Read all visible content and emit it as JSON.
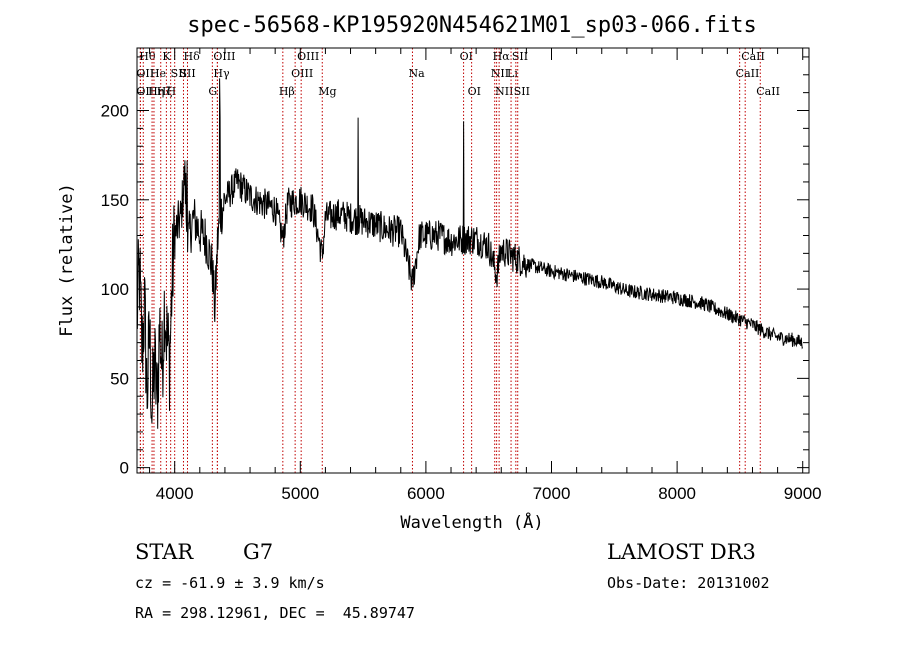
{
  "chart_data": {
    "type": "line",
    "title": "spec-56568-KP195920N454621M01_sp03-066.fits",
    "xlabel": "Wavelength (Å)",
    "ylabel": "Flux (relative)",
    "xlim": [
      3700,
      9050
    ],
    "ylim": [
      -3,
      235
    ],
    "xticks": [
      4000,
      5000,
      6000,
      7000,
      8000,
      9000
    ],
    "yticks": [
      0,
      50,
      100,
      150,
      200
    ],
    "spectrum_anchors": [
      [
        3700,
        85
      ],
      [
        3720,
        110
      ],
      [
        3740,
        65
      ],
      [
        3760,
        90
      ],
      [
        3780,
        40
      ],
      [
        3800,
        75
      ],
      [
        3820,
        30
      ],
      [
        3840,
        60
      ],
      [
        3860,
        35
      ],
      [
        3880,
        80
      ],
      [
        3900,
        55
      ],
      [
        3920,
        95
      ],
      [
        3940,
        70
      ],
      [
        3960,
        60
      ],
      [
        3980,
        105
      ],
      [
        4000,
        130
      ],
      [
        4050,
        140
      ],
      [
        4080,
        165
      ],
      [
        4100,
        125
      ],
      [
        4150,
        140
      ],
      [
        4200,
        132
      ],
      [
        4250,
        128
      ],
      [
        4300,
        112
      ],
      [
        4320,
        88
      ],
      [
        4340,
        125
      ],
      [
        4360,
        140
      ],
      [
        4400,
        150
      ],
      [
        4500,
        160
      ],
      [
        4600,
        152
      ],
      [
        4700,
        148
      ],
      [
        4800,
        145
      ],
      [
        4862,
        128
      ],
      [
        4900,
        148
      ],
      [
        5000,
        150
      ],
      [
        5100,
        145
      ],
      [
        5175,
        118
      ],
      [
        5200,
        140
      ],
      [
        5300,
        142
      ],
      [
        5400,
        140
      ],
      [
        5500,
        138
      ],
      [
        5600,
        136
      ],
      [
        5700,
        133
      ],
      [
        5800,
        132
      ],
      [
        5893,
        103
      ],
      [
        5950,
        130
      ],
      [
        6000,
        130
      ],
      [
        6100,
        130
      ],
      [
        6200,
        127
      ],
      [
        6300,
        128
      ],
      [
        6400,
        128
      ],
      [
        6500,
        124
      ],
      [
        6563,
        108
      ],
      [
        6600,
        122
      ],
      [
        6700,
        118
      ],
      [
        6800,
        114
      ],
      [
        6900,
        112
      ],
      [
        7000,
        110
      ],
      [
        7200,
        107
      ],
      [
        7400,
        104
      ],
      [
        7600,
        99
      ],
      [
        7800,
        97
      ],
      [
        8000,
        95
      ],
      [
        8200,
        92
      ],
      [
        8400,
        86
      ],
      [
        8500,
        83
      ],
      [
        8600,
        80
      ],
      [
        8700,
        76
      ],
      [
        8800,
        73
      ],
      [
        8900,
        72
      ],
      [
        9000,
        70
      ]
    ],
    "spikes": [
      {
        "x": 4358,
        "y": 218
      },
      {
        "x": 4360,
        "y": 196
      },
      {
        "x": 5460,
        "y": 196
      },
      {
        "x": 6300,
        "y": 194
      },
      {
        "x": 4100,
        "y": 172
      },
      {
        "x": 4090,
        "y": 165
      }
    ],
    "noise": [
      {
        "from": 3700,
        "to": 4000,
        "amp": 30
      },
      {
        "from": 4000,
        "to": 4400,
        "amp": 14
      },
      {
        "from": 4400,
        "to": 6800,
        "amp": 9
      },
      {
        "from": 6800,
        "to": 9050,
        "amp": 4
      }
    ],
    "lines": [
      {
        "x": 3750,
        "label": "Hθ",
        "row": 1
      },
      {
        "x": 3727,
        "label": "OII",
        "row": 2
      },
      {
        "x": 3727,
        "label": "OII",
        "row": 3
      },
      {
        "x": 3820,
        "label": "Hη",
        "row": 3
      },
      {
        "x": 3835,
        "label": "He",
        "row": 2
      },
      {
        "x": 3889,
        "label": "Hζ",
        "row": 3
      },
      {
        "x": 3934,
        "label": "K",
        "row": 1
      },
      {
        "x": 3968,
        "label": "H",
        "row": 3
      },
      {
        "x": 4000,
        "label": "SII",
        "row": 2
      },
      {
        "x": 4070,
        "label": "SII",
        "row": 2
      },
      {
        "x": 4102,
        "label": "Hδ",
        "row": 1
      },
      {
        "x": 4300,
        "label": "G",
        "row": 3
      },
      {
        "x": 4340,
        "label": "Hγ",
        "row": 2
      },
      {
        "x": 4340,
        "label": "OIII",
        "row": 1
      },
      {
        "x": 4861,
        "label": "Hβ",
        "row": 3
      },
      {
        "x": 4959,
        "label": "OIII",
        "row": 2
      },
      {
        "x": 5007,
        "label": "OIII",
        "row": 1
      },
      {
        "x": 5175,
        "label": "Mg",
        "row": 3
      },
      {
        "x": 5893,
        "label": "Na",
        "row": 2
      },
      {
        "x": 6300,
        "label": "OI",
        "row": 1
      },
      {
        "x": 6364,
        "label": "OI",
        "row": 3
      },
      {
        "x": 6548,
        "label": "NII",
        "row": 2
      },
      {
        "x": 6563,
        "label": "Hα",
        "row": 1
      },
      {
        "x": 6583,
        "label": "NII",
        "row": 3
      },
      {
        "x": 6678,
        "label": "Li",
        "row": 2
      },
      {
        "x": 6716,
        "label": "SII",
        "row": 1
      },
      {
        "x": 6731,
        "label": "SII",
        "row": 3
      },
      {
        "x": 8498,
        "label": "CaII",
        "row": 2
      },
      {
        "x": 8542,
        "label": "CaII",
        "row": 1
      },
      {
        "x": 8662,
        "label": "CaII",
        "row": 3
      }
    ]
  },
  "info": {
    "object_class": "STAR",
    "subclass": "G7",
    "survey": "LAMOST DR3",
    "velocity": "cz = -61.9 ± 3.9 km/s",
    "obs_date": "Obs-Date: 20131002",
    "coords": "RA = 298.12961, DEC =  45.89747"
  }
}
